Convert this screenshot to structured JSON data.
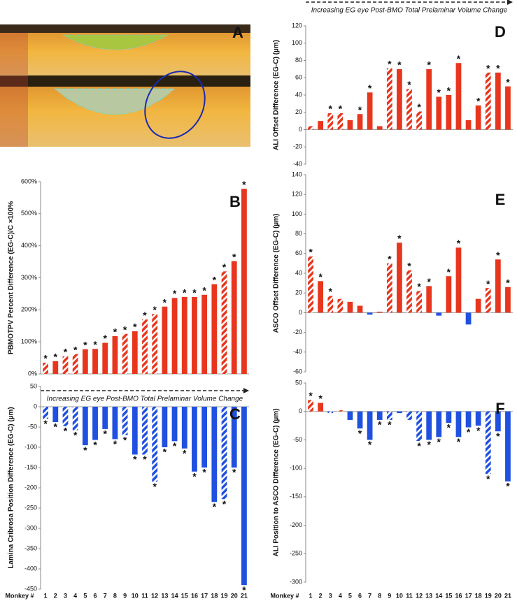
{
  "image_panel": {
    "label": "A"
  },
  "chart_data": [
    {
      "type": "bar",
      "letter": "B",
      "ylabel": "PBMOTPV Percent Difference  (EG-C)/C ×100%",
      "trend_label": "Increasing EG eye Post-BMO Total Prelaminar Volume  Change",
      "values": [
        35,
        40,
        55,
        62,
        77,
        78,
        97,
        118,
        125,
        133,
        170,
        187,
        210,
        237,
        240,
        240,
        247,
        280,
        320,
        352,
        578
      ],
      "hatched": [
        true,
        false,
        true,
        true,
        false,
        false,
        false,
        false,
        true,
        false,
        true,
        true,
        false,
        false,
        false,
        false,
        false,
        false,
        true,
        false,
        false
      ],
      "annotations": [
        "*",
        "*",
        "*",
        "*",
        "*",
        "*",
        "*",
        "*",
        "*",
        "*",
        "*",
        "*",
        "*",
        "*",
        "*",
        "*",
        "*",
        "*",
        "*",
        "*",
        "*"
      ],
      "colors": {
        "positive": "#e8361e",
        "negative": "#2050e0"
      },
      "ylim": [
        0,
        600
      ],
      "yticks": [
        {
          "value": 0,
          "label": "0%"
        },
        {
          "value": 100,
          "label": "100%"
        },
        {
          "value": 200,
          "label": "200%"
        },
        {
          "value": 300,
          "label": "300%"
        },
        {
          "value": 400,
          "label": "400%"
        },
        {
          "value": 500,
          "label": "500%"
        },
        {
          "value": 600,
          "label": "600%"
        }
      ]
    },
    {
      "type": "bar",
      "letter": "C",
      "ylabel": "Lamina Cribrosa Position Difference (EG-C) (µm)",
      "xlabel": "Monkey #",
      "categories": [
        "1",
        "2",
        "3",
        "4",
        "5",
        "6",
        "7",
        "8",
        "9",
        "10",
        "11",
        "12",
        "13",
        "14",
        "15",
        "16",
        "17",
        "18",
        "19",
        "20",
        "21"
      ],
      "values": [
        -30,
        -38,
        -48,
        -58,
        -95,
        -82,
        -55,
        -80,
        -70,
        -118,
        -118,
        -185,
        -100,
        -85,
        -103,
        -160,
        -150,
        -235,
        -228,
        -150,
        -440
      ],
      "hatched": [
        true,
        false,
        true,
        true,
        false,
        false,
        false,
        false,
        true,
        false,
        true,
        true,
        false,
        false,
        false,
        false,
        false,
        false,
        true,
        false,
        false
      ],
      "annotations": [
        "*",
        "*",
        "*",
        "*",
        "*",
        "*",
        "*",
        "*",
        "*",
        "*",
        "*",
        "*",
        "*",
        "*",
        "*",
        "*",
        "*",
        "*",
        "*",
        "*",
        "*"
      ],
      "colors": {
        "positive": "#e8361e",
        "negative": "#2050e0"
      },
      "ylim": [
        -450,
        50
      ],
      "yticks": [
        50,
        0,
        -50,
        -100,
        -150,
        -200,
        -250,
        -300,
        -350,
        -400,
        -450
      ]
    },
    {
      "type": "bar",
      "letter": "D",
      "ylabel": "ALI  Offset Difference (EG-C) (µm)",
      "trend_label": "Increasing EG eye Post-BMO Total Prelaminar Volume  Change",
      "values": [
        4,
        10,
        19,
        19,
        11,
        18,
        43,
        4,
        71,
        70,
        47,
        21,
        70,
        38,
        40,
        77,
        11,
        28,
        66,
        66,
        50
      ],
      "hatched": [
        true,
        false,
        true,
        true,
        false,
        false,
        false,
        false,
        true,
        false,
        true,
        true,
        false,
        false,
        false,
        false,
        false,
        false,
        true,
        false,
        false
      ],
      "annotations": [
        null,
        null,
        "*",
        "*",
        null,
        "*",
        "*",
        null,
        "*",
        "*",
        "*",
        "*",
        "*",
        "*",
        "*",
        "*",
        null,
        "*",
        "*",
        "*",
        "*"
      ],
      "colors": {
        "positive": "#e8361e",
        "negative": "#2050e0"
      },
      "ylim": [
        -40,
        120
      ],
      "yticks": [
        120,
        100,
        80,
        60,
        40,
        20,
        0,
        -20,
        -40
      ]
    },
    {
      "type": "bar",
      "letter": "E",
      "ylabel": "ASCO  Offset Difference (EG-C) (µm)",
      "values": [
        57,
        32,
        17,
        14,
        11,
        7,
        -2,
        1,
        50,
        71,
        43,
        22,
        27,
        -3,
        37,
        66,
        -12,
        14,
        25,
        54,
        26
      ],
      "hatched": [
        true,
        false,
        true,
        true,
        false,
        false,
        false,
        false,
        true,
        false,
        true,
        true,
        false,
        false,
        false,
        false,
        false,
        false,
        true,
        false,
        false
      ],
      "annotations": [
        "*",
        "*",
        "*",
        null,
        null,
        null,
        null,
        null,
        "*",
        "*",
        "*",
        "*",
        "*",
        null,
        "*",
        "*",
        null,
        null,
        "*",
        "*",
        "*"
      ],
      "colors": {
        "positive": "#e8361e",
        "negative": "#2050e0"
      },
      "ylim": [
        -60,
        140
      ],
      "yticks": [
        140,
        120,
        100,
        80,
        60,
        40,
        20,
        0,
        -20,
        -40,
        -60
      ]
    },
    {
      "type": "bar",
      "letter": "F",
      "ylabel": "ALI Position to ASCO  Difference (EG-C) (µm)",
      "xlabel": "Monkey #",
      "categories": [
        "1",
        "2",
        "3",
        "4",
        "5",
        "6",
        "7",
        "8",
        "9",
        "10",
        "11",
        "12",
        "13",
        "14",
        "15",
        "16",
        "17",
        "18",
        "19",
        "20",
        "21"
      ],
      "values": [
        20,
        15,
        -3,
        2,
        -15,
        -30,
        -50,
        -15,
        -15,
        -3,
        -15,
        -52,
        -50,
        -45,
        -20,
        -45,
        -28,
        -25,
        -110,
        -35,
        -123
      ],
      "hatched": [
        true,
        false,
        true,
        true,
        false,
        false,
        false,
        false,
        true,
        false,
        true,
        true,
        false,
        false,
        false,
        false,
        false,
        false,
        true,
        false,
        false
      ],
      "annotations": [
        "*",
        "*",
        null,
        null,
        null,
        "*",
        "*",
        "*",
        "*",
        null,
        null,
        "*",
        "*",
        "*",
        "*",
        "*",
        "*",
        "*",
        "*",
        "*",
        "*"
      ],
      "colors": {
        "positive": "#e8361e",
        "negative": "#2050e0"
      },
      "ylim": [
        -300,
        50
      ],
      "yticks": [
        50,
        0,
        -50,
        -100,
        -150,
        -200,
        -250,
        -300
      ]
    }
  ]
}
